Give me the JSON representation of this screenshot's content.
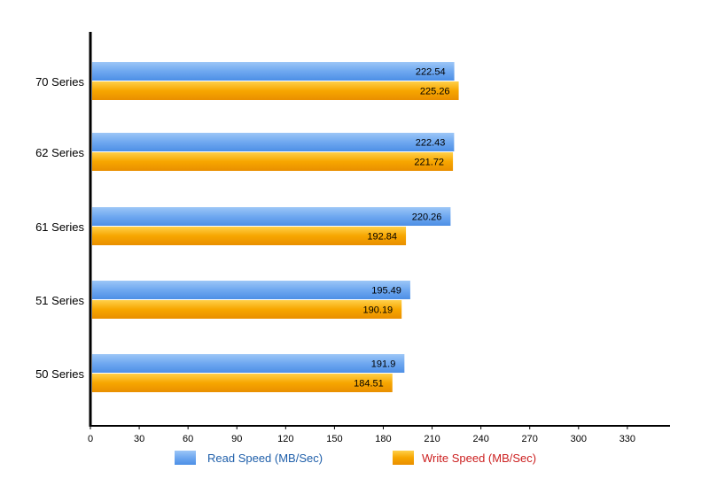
{
  "chart_data": {
    "type": "bar",
    "orientation": "horizontal",
    "categories": [
      "70 Series",
      "62 Series",
      "61 Series",
      "51 Series",
      "50 Series"
    ],
    "series": [
      {
        "name": "Read Speed (MB/Sec)",
        "values": [
          222.54,
          222.43,
          220.26,
          195.49,
          191.9
        ],
        "color": "#6fa8f0",
        "label_color": "#1f5faa"
      },
      {
        "name": "Write Speed (MB/Sec)",
        "values": [
          225.26,
          221.72,
          192.84,
          190.19,
          184.51
        ],
        "color": "#f7a600",
        "label_color": "#cc2020"
      }
    ],
    "value_labels": [
      [
        "222.54",
        "222.43",
        "220.26",
        "195.49",
        "191.9"
      ],
      [
        "225.26",
        "221.72",
        "192.84",
        "190.19",
        "184.51"
      ]
    ],
    "x_ticks": [
      "0",
      "30",
      "60",
      "90",
      "120",
      "150",
      "180",
      "210",
      "240",
      "270",
      "300",
      "330"
    ],
    "xlim": [
      0,
      358
    ],
    "grid": false,
    "legend_position": "bottom",
    "title": "",
    "xlabel": "",
    "ylabel": ""
  }
}
